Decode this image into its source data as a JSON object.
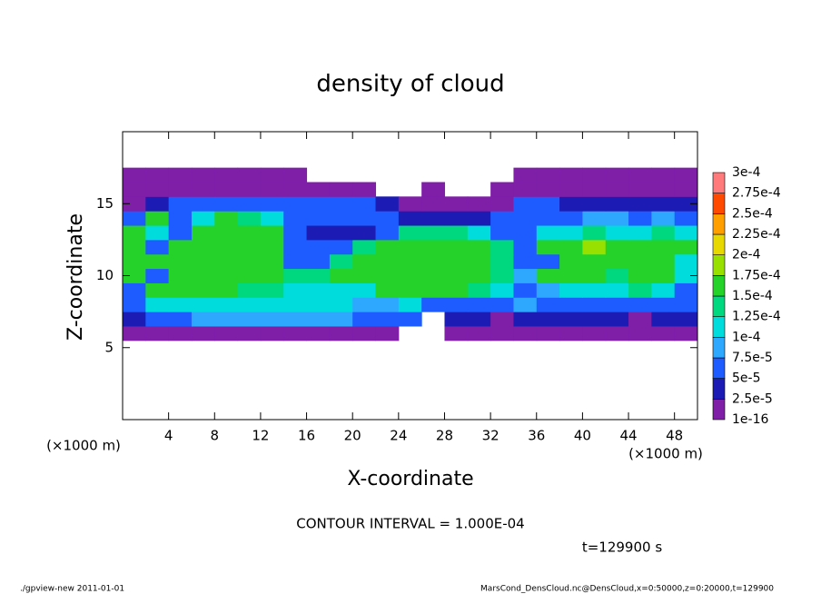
{
  "chart_data": {
    "type": "heatmap",
    "title": "density of cloud",
    "xlabel": "X-coordinate",
    "ylabel": "Z-coordinate",
    "x_unit_label": "(×1000 m)",
    "y_unit_label": "(×1000 m)",
    "note": "CONTOUR INTERVAL = 1.000E-04",
    "time_label": "t=129900 s",
    "footer_left": "./gpview-new   2011-01-01",
    "footer_right": "MarsCond_DensCloud.nc@DensCloud,x=0:50000,z=0:20000,t=129900",
    "xlim": [
      0,
      50
    ],
    "xticks": [
      4,
      8,
      12,
      16,
      20,
      24,
      28,
      32,
      36,
      40,
      44,
      48
    ],
    "ylim": [
      0,
      20
    ],
    "yticks": [
      5,
      10,
      15
    ],
    "x": [
      1,
      3,
      5,
      7,
      9,
      11,
      13,
      15,
      17,
      19,
      21,
      23,
      25,
      27,
      29,
      31,
      33,
      35,
      37,
      39,
      41,
      43,
      45,
      47,
      49
    ],
    "y": [
      6,
      7,
      8,
      9,
      10,
      11,
      12,
      13,
      14,
      15,
      16,
      17
    ],
    "values": [
      [
        1e-05,
        1e-05,
        1e-05,
        1e-05,
        1e-05,
        1e-05,
        1e-05,
        1e-05,
        1e-05,
        1e-05,
        1e-05,
        1e-05,
        null,
        null,
        1e-05,
        1e-05,
        1e-05,
        1e-05,
        1e-05,
        1e-05,
        1e-05,
        1e-05,
        1e-05,
        1e-05,
        1e-05
      ],
      [
        3.5e-05,
        6e-05,
        6e-05,
        8.5e-05,
        8.5e-05,
        8.5e-05,
        8.5e-05,
        8.5e-05,
        8.5e-05,
        8.5e-05,
        6e-05,
        6e-05,
        6e-05,
        null,
        3.5e-05,
        3.5e-05,
        1e-05,
        3.5e-05,
        3.5e-05,
        3.5e-05,
        3.5e-05,
        3.5e-05,
        1e-05,
        3.5e-05,
        3.5e-05
      ],
      [
        6e-05,
        0.00011,
        0.00011,
        0.00011,
        0.00011,
        0.00011,
        0.00011,
        0.00011,
        0.00011,
        0.00011,
        8.5e-05,
        8.5e-05,
        0.00011,
        6e-05,
        6e-05,
        6e-05,
        6e-05,
        8.5e-05,
        6e-05,
        6e-05,
        6e-05,
        6e-05,
        6e-05,
        6e-05,
        6e-05
      ],
      [
        6e-05,
        0.00016,
        0.00016,
        0.00016,
        0.00016,
        0.000135,
        0.000135,
        0.00011,
        0.00011,
        0.00011,
        0.00011,
        0.00016,
        0.00016,
        0.00016,
        0.00016,
        0.000135,
        0.00011,
        6e-05,
        8.5e-05,
        0.00011,
        0.00011,
        0.00011,
        0.000135,
        0.00011,
        6e-05
      ],
      [
        0.00016,
        6e-05,
        0.00016,
        0.00016,
        0.00016,
        0.00016,
        0.00016,
        0.000135,
        0.000135,
        0.00016,
        0.00016,
        0.00016,
        0.00016,
        0.00016,
        0.00016,
        0.00016,
        0.000135,
        8.5e-05,
        0.00016,
        0.00016,
        0.00016,
        0.000135,
        0.00016,
        0.00016,
        0.00011
      ],
      [
        0.00016,
        0.00016,
        0.00016,
        0.00016,
        0.00016,
        0.00016,
        0.00016,
        6e-05,
        6e-05,
        0.000135,
        0.00016,
        0.00016,
        0.00016,
        0.00016,
        0.00016,
        0.00016,
        0.000135,
        6e-05,
        6e-05,
        0.00016,
        0.00016,
        0.00016,
        0.00016,
        0.00016,
        0.00011
      ],
      [
        0.00016,
        6e-05,
        0.00016,
        0.00016,
        0.00016,
        0.00016,
        0.00016,
        6e-05,
        6e-05,
        6e-05,
        0.000135,
        0.00016,
        0.00016,
        0.00016,
        0.00016,
        0.00016,
        0.000135,
        6e-05,
        0.00016,
        0.00016,
        0.000185,
        0.00016,
        0.00016,
        0.00016,
        0.00016
      ],
      [
        0.00016,
        0.00011,
        6e-05,
        0.00016,
        0.00016,
        0.00016,
        0.00016,
        6e-05,
        3.5e-05,
        3.5e-05,
        3.5e-05,
        6e-05,
        0.000135,
        0.000135,
        0.000135,
        0.00011,
        6e-05,
        6e-05,
        0.00011,
        0.00011,
        0.000135,
        0.00011,
        0.00011,
        0.000135,
        0.00011
      ],
      [
        6e-05,
        0.00016,
        6e-05,
        0.00011,
        0.00016,
        0.000135,
        0.00011,
        6e-05,
        6e-05,
        6e-05,
        6e-05,
        6e-05,
        3.5e-05,
        3.5e-05,
        3.5e-05,
        3.5e-05,
        6e-05,
        6e-05,
        6e-05,
        6e-05,
        8.5e-05,
        8.5e-05,
        6e-05,
        8.5e-05,
        6e-05
      ],
      [
        1e-05,
        3.5e-05,
        6e-05,
        6e-05,
        6e-05,
        6e-05,
        6e-05,
        6e-05,
        6e-05,
        6e-05,
        6e-05,
        3.5e-05,
        1e-05,
        1e-05,
        1e-05,
        1e-05,
        1e-05,
        6e-05,
        6e-05,
        3.5e-05,
        3.5e-05,
        3.5e-05,
        3.5e-05,
        3.5e-05,
        3.5e-05
      ],
      [
        1e-05,
        1e-05,
        1e-05,
        1e-05,
        1e-05,
        1e-05,
        1e-05,
        1e-05,
        1e-05,
        1e-05,
        1e-05,
        null,
        null,
        1e-05,
        null,
        null,
        1e-05,
        1e-05,
        1e-05,
        1e-05,
        1e-05,
        1e-05,
        1e-05,
        1e-05,
        1e-05
      ],
      [
        1e-05,
        1e-05,
        1e-05,
        1e-05,
        1e-05,
        1e-05,
        1e-05,
        1e-05,
        null,
        null,
        null,
        null,
        null,
        null,
        null,
        null,
        null,
        1e-05,
        1e-05,
        1e-05,
        1e-05,
        1e-05,
        1e-05,
        1e-05,
        1e-05
      ]
    ],
    "levels": [
      {
        "value": 1e-16,
        "label": "1e-16"
      },
      {
        "value": 2.5e-05,
        "label": "2.5e-5"
      },
      {
        "value": 5e-05,
        "label": "5e-5"
      },
      {
        "value": 7.5e-05,
        "label": "7.5e-5"
      },
      {
        "value": 0.0001,
        "label": "1e-4"
      },
      {
        "value": 0.000125,
        "label": "1.25e-4"
      },
      {
        "value": 0.00015,
        "label": "1.5e-4"
      },
      {
        "value": 0.000175,
        "label": "1.75e-4"
      },
      {
        "value": 0.0002,
        "label": "2e-4"
      },
      {
        "value": 0.000225,
        "label": "2.25e-4"
      },
      {
        "value": 0.00025,
        "label": "2.5e-4"
      },
      {
        "value": 0.000275,
        "label": "2.75e-4"
      },
      {
        "value": 0.0003,
        "label": "3e-4"
      }
    ],
    "colors": [
      "#7f1fa8",
      "#1c1cb4",
      "#1e5cff",
      "#2ea8ff",
      "#00dcdc",
      "#00d880",
      "#24d22a",
      "#98e000",
      "#e6d800",
      "#ffa000",
      "#ff4a00",
      "#ff7a7a"
    ]
  }
}
